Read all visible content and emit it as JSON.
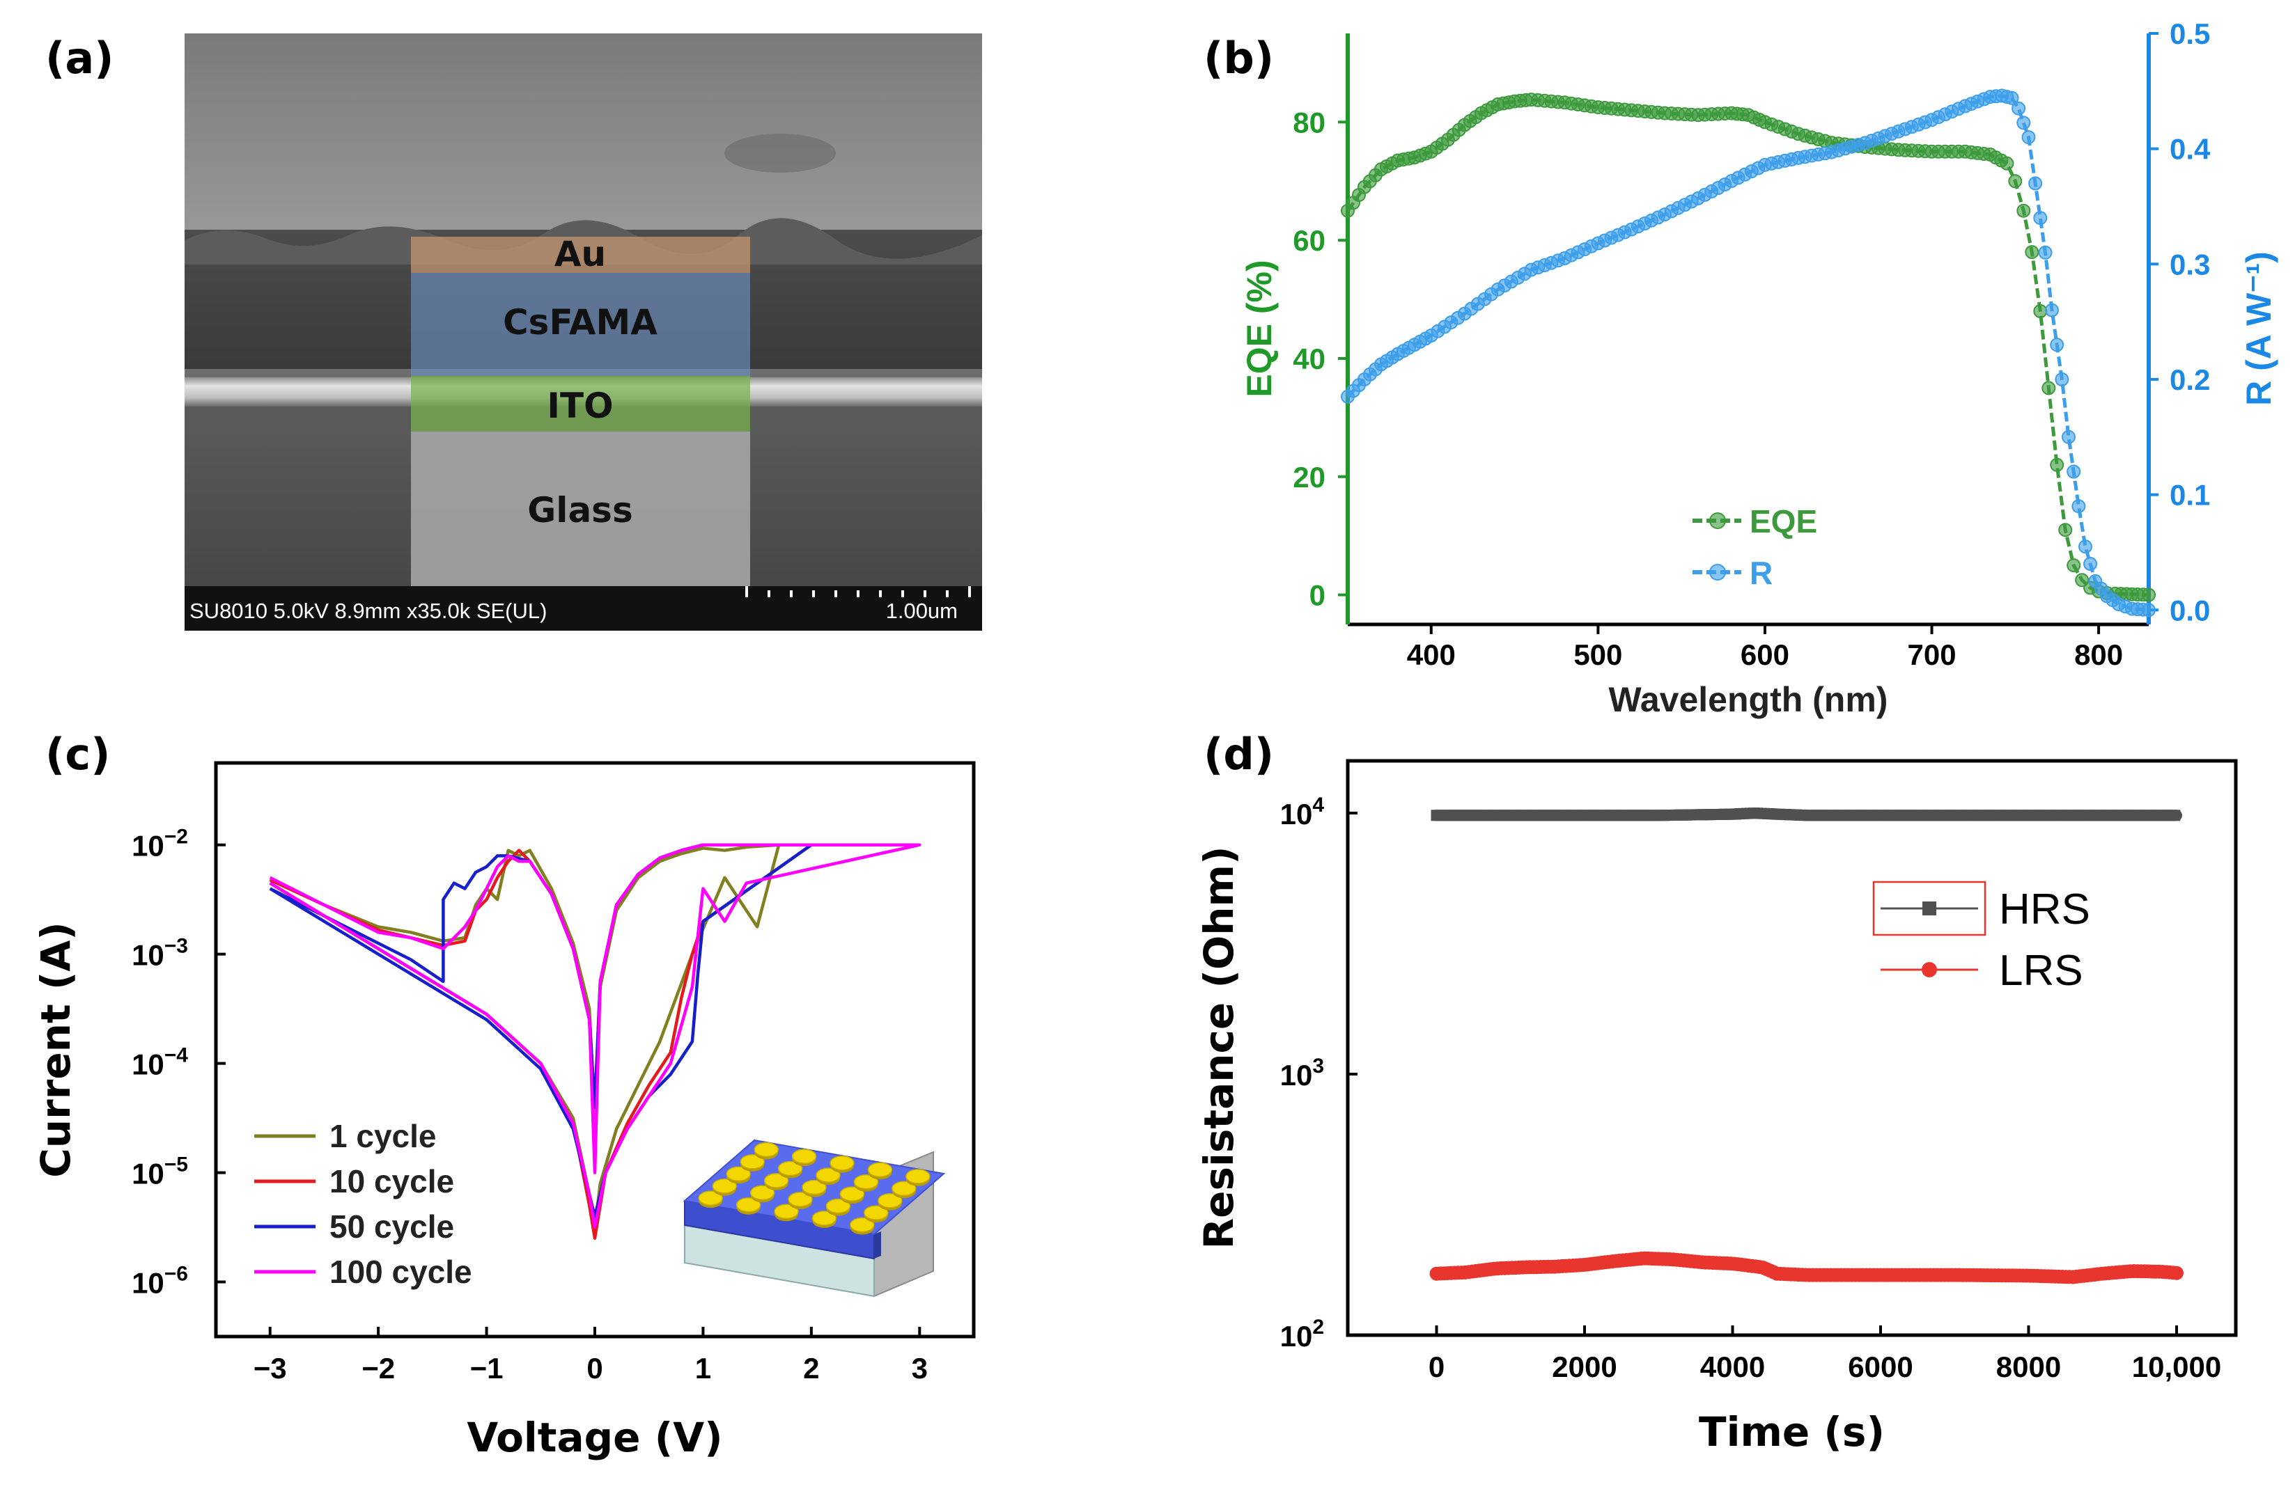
{
  "figure": {
    "panel_labels": [
      "(a)",
      "(b)",
      "(c)",
      "(d)"
    ],
    "sem": {
      "layers": [
        "Au",
        "CsFAMA",
        "ITO",
        "Glass"
      ],
      "footer": "SU8010 5.0kV 8.9mm x35.0k SE(UL)",
      "scale": "1.00um"
    }
  },
  "chart_data": [
    {
      "panel": "(b)",
      "type": "scatter",
      "xlabel": "Wavelength (nm)",
      "ylabel": "EQE (%)",
      "y2label": "R (A W⁻¹)",
      "xlim": [
        350,
        830
      ],
      "ylim": [
        -5,
        95
      ],
      "y2lim": [
        -0.0125,
        0.5
      ],
      "xticks": [
        "400",
        "500",
        "600",
        "700",
        "800"
      ],
      "yticks": [
        "0",
        "20",
        "40",
        "60",
        "80"
      ],
      "y2ticks": [
        "0.0",
        "0.1",
        "0.2",
        "0.3",
        "0.4",
        "0.5"
      ],
      "colors": {
        "EQE": "#3c9a3c",
        "R": "#3d9eea",
        "left_axis": "#1f9a28",
        "right_axis": "#1c88e6"
      },
      "legend": [
        "EQE",
        "R"
      ],
      "series": [
        {
          "name": "EQE",
          "axis": "left",
          "x": [
            350,
            360,
            370,
            380,
            390,
            400,
            410,
            420,
            430,
            440,
            450,
            460,
            480,
            500,
            520,
            540,
            560,
            580,
            590,
            600,
            620,
            640,
            660,
            680,
            700,
            720,
            735,
            745,
            750,
            755,
            760,
            765,
            770,
            775,
            780,
            785,
            790,
            795,
            800,
            805,
            810,
            820,
            830
          ],
          "values": [
            65,
            69,
            72,
            73.5,
            74,
            75,
            77,
            79.5,
            81.5,
            83,
            83.5,
            83.8,
            83.3,
            82.5,
            82,
            81.5,
            81.2,
            81.5,
            81.2,
            80,
            78,
            76.5,
            75.8,
            75.3,
            75,
            75,
            74.5,
            73,
            70,
            65,
            58,
            48,
            35,
            22,
            11,
            5,
            2.5,
            1.2,
            0.6,
            0.3,
            0.2,
            0.1,
            0
          ]
        },
        {
          "name": "R",
          "axis": "right",
          "x": [
            350,
            360,
            370,
            380,
            390,
            400,
            420,
            440,
            460,
            480,
            500,
            520,
            540,
            560,
            580,
            600,
            620,
            640,
            660,
            680,
            700,
            720,
            735,
            742,
            748,
            752,
            758,
            762,
            768,
            772,
            778,
            782,
            788,
            792,
            798,
            805,
            812,
            820,
            830
          ],
          "values": [
            0.185,
            0.2,
            0.213,
            0.222,
            0.23,
            0.238,
            0.257,
            0.278,
            0.295,
            0.305,
            0.318,
            0.33,
            0.343,
            0.357,
            0.372,
            0.386,
            0.392,
            0.397,
            0.405,
            0.415,
            0.425,
            0.437,
            0.445,
            0.446,
            0.444,
            0.435,
            0.41,
            0.37,
            0.31,
            0.26,
            0.2,
            0.15,
            0.09,
            0.055,
            0.025,
            0.012,
            0.005,
            0.001,
            0
          ]
        }
      ]
    },
    {
      "panel": "(c)",
      "type": "line",
      "xlabel": "Voltage (V)",
      "ylabel": "Current (A)",
      "xlim": [
        -3.5,
        3.5
      ],
      "ylim_log10": [
        -6.5,
        -1.25
      ],
      "xticks": [
        "−3",
        "−2",
        "−1",
        "0",
        "1",
        "2",
        "3"
      ],
      "yticks": [
        "10−6",
        "10−5",
        "10−4",
        "10−3",
        "10−2"
      ],
      "legend": [
        "1   cycle",
        "10 cycle",
        "50 cycle",
        "100 cycle"
      ],
      "series": [
        {
          "name": "1   cycle",
          "color": "#808020",
          "x": [
            -3,
            -2.5,
            -2,
            -1.7,
            -1.4,
            -1.2,
            -1.1,
            -1.0,
            -0.9,
            -0.8,
            -0.7,
            -0.6,
            -0.4,
            -0.2,
            -0.05,
            0,
            0.05,
            0.2,
            0.4,
            0.6,
            0.8,
            1.0,
            1.2,
            1.4,
            1.7,
            1.5,
            1.2,
            0.9,
            0.6,
            0.4,
            0.2,
            0.05,
            0,
            -0.05,
            -0.2,
            -0.5,
            -1,
            -1.5,
            -2,
            -2.5,
            -3
          ],
          "values": [
            -2.32,
            -2.55,
            -2.75,
            -2.8,
            -2.88,
            -2.85,
            -2.55,
            -2.4,
            -2.5,
            -2.05,
            -2.1,
            -2.05,
            -2.4,
            -2.9,
            -3.5,
            -4.5,
            -3.3,
            -2.6,
            -2.3,
            -2.15,
            -2.08,
            -2.03,
            -2.05,
            -2.02,
            -2,
            -2.75,
            -2.3,
            -3.0,
            -3.8,
            -4.2,
            -4.6,
            -5.1,
            -5.5,
            -5.2,
            -4.5,
            -4.0,
            -3.55,
            -3.25,
            -2.95,
            -2.65,
            -2.35
          ]
        },
        {
          "name": "10 cycle",
          "color": "#e41a1c",
          "x": [
            -3,
            -2.5,
            -2,
            -1.7,
            -1.4,
            -1.2,
            -1.1,
            -1.0,
            -0.9,
            -0.8,
            -0.7,
            -0.6,
            -0.4,
            -0.2,
            -0.05,
            0,
            0.05,
            0.2,
            0.4,
            0.6,
            0.8,
            1.0,
            1.3,
            1.6,
            2.0,
            1.0,
            0.9,
            0.8,
            0.7,
            0.5,
            0.3,
            0.1,
            0,
            -0.05,
            -0.2,
            -0.5,
            -1,
            -1.5,
            -2,
            -2.5,
            -3
          ],
          "values": [
            -2.32,
            -2.55,
            -2.78,
            -2.85,
            -2.92,
            -2.88,
            -2.6,
            -2.5,
            -2.3,
            -2.15,
            -2.05,
            -2.15,
            -2.45,
            -2.95,
            -3.6,
            -4.4,
            -3.25,
            -2.55,
            -2.27,
            -2.12,
            -2.05,
            -2,
            -2,
            -2,
            -2,
            -2.7,
            -3.0,
            -3.4,
            -3.9,
            -4.2,
            -4.55,
            -5.0,
            -5.6,
            -5.3,
            -4.55,
            -4.0,
            -3.55,
            -3.25,
            -2.95,
            -2.65,
            -2.35
          ]
        },
        {
          "name": "50 cycle",
          "color": "#1520cc",
          "x": [
            -3,
            -2.5,
            -2,
            -1.7,
            -1.4,
            -1.4,
            -1.3,
            -1.2,
            -1.1,
            -1.0,
            -0.9,
            -0.8,
            -0.6,
            -0.4,
            -0.2,
            -0.05,
            0,
            0.05,
            0.2,
            0.4,
            0.6,
            0.8,
            1.0,
            1.3,
            1.6,
            2.0,
            1.0,
            0.95,
            0.9,
            0.7,
            0.5,
            0.3,
            0.1,
            0,
            -0.05,
            -0.2,
            -0.5,
            -1,
            -1.5,
            -2,
            -2.5,
            -3
          ],
          "values": [
            -2.4,
            -2.65,
            -2.9,
            -3.05,
            -3.25,
            -2.5,
            -2.35,
            -2.4,
            -2.25,
            -2.2,
            -2.1,
            -2.1,
            -2.15,
            -2.45,
            -2.95,
            -3.6,
            -4.4,
            -3.25,
            -2.55,
            -2.27,
            -2.12,
            -2.05,
            -2,
            -2,
            -2,
            -2,
            -2.7,
            -3.2,
            -3.8,
            -4.1,
            -4.3,
            -4.6,
            -5.0,
            -5.4,
            -5.2,
            -4.6,
            -4.05,
            -3.6,
            -3.3,
            -3.0,
            -2.7,
            -2.4
          ]
        },
        {
          "name": "100 cycle",
          "color": "#ff00ff",
          "x": [
            -3,
            -2.5,
            -2,
            -1.7,
            -1.4,
            -1.2,
            -1.1,
            -1.0,
            -0.9,
            -0.8,
            -0.7,
            -0.6,
            -0.4,
            -0.2,
            -0.05,
            0,
            0.05,
            0.2,
            0.4,
            0.6,
            0.8,
            1.0,
            1.3,
            1.6,
            2.2,
            3.0,
            1.4,
            1.2,
            1.0,
            0.9,
            0.7,
            0.5,
            0.3,
            0.1,
            0,
            -0.05,
            -0.2,
            -0.5,
            -1,
            -1.5,
            -2,
            -2.5,
            -3
          ],
          "values": [
            -2.3,
            -2.55,
            -2.8,
            -2.85,
            -2.95,
            -2.75,
            -2.6,
            -2.4,
            -2.2,
            -2.1,
            -2.15,
            -2.15,
            -2.45,
            -2.95,
            -3.6,
            -5.0,
            -3.25,
            -2.55,
            -2.27,
            -2.12,
            -2.05,
            -2,
            -2,
            -2,
            -2,
            -2,
            -2.35,
            -2.7,
            -2.4,
            -3.3,
            -4.0,
            -4.3,
            -4.6,
            -5.0,
            -5.5,
            -5.2,
            -4.55,
            -4.0,
            -3.55,
            -3.25,
            -2.95,
            -2.65,
            -2.35
          ]
        }
      ]
    },
    {
      "panel": "(d)",
      "type": "scatter",
      "xlabel": "Time (s)",
      "ylabel": "Resistance (Ohm)",
      "xlim": [
        -1200,
        10800
      ],
      "ylim_log10": [
        2,
        4.2
      ],
      "xticks": [
        "0",
        "2000",
        "4000",
        "6000",
        "8000",
        "10,000"
      ],
      "yticks": [
        "10²",
        "10³",
        "10⁴"
      ],
      "legend": [
        "HRS",
        "LRS"
      ],
      "series": [
        {
          "name": "HRS",
          "color": "#505050",
          "x": [
            0,
            1000,
            2000,
            3000,
            4000,
            4300,
            4600,
            5000,
            6000,
            7000,
            8000,
            9000,
            10000
          ],
          "values": [
            9800,
            9800,
            9800,
            9800,
            9900,
            10000,
            9900,
            9800,
            9800,
            9800,
            9800,
            9800,
            9800
          ]
        },
        {
          "name": "LRS",
          "color": "#e8362f",
          "x": [
            0,
            400,
            800,
            1200,
            1600,
            2000,
            2400,
            2800,
            3200,
            3600,
            4000,
            4400,
            4600,
            5000,
            6000,
            7000,
            8000,
            8600,
            9000,
            9400,
            9800,
            10000
          ],
          "values": [
            172,
            174,
            180,
            182,
            183,
            186,
            192,
            197,
            195,
            190,
            188,
            182,
            172,
            170,
            170,
            170,
            169,
            167,
            172,
            176,
            175,
            173
          ]
        }
      ]
    }
  ]
}
